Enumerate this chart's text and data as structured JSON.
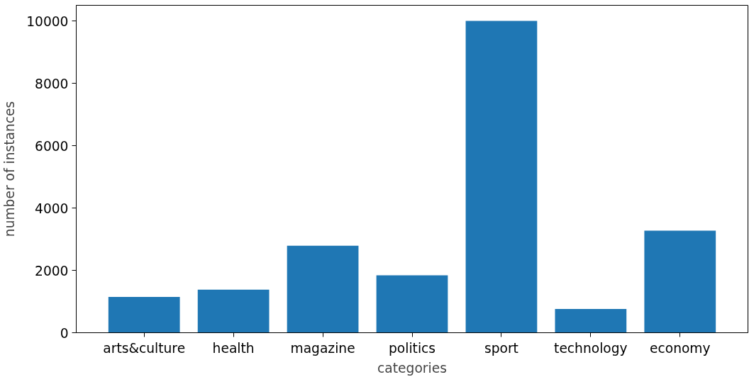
{
  "chart_data": {
    "type": "bar",
    "xlabel": "categories",
    "ylabel": "number of instances",
    "categories": [
      "arts&culture",
      "health",
      "magazine",
      "politics",
      "sport",
      "technology",
      "economy"
    ],
    "values": [
      1150,
      1380,
      2790,
      1840,
      10000,
      760,
      3270
    ],
    "color": "#1f77b4",
    "ylim": [
      0,
      10500
    ],
    "yticks": [
      0,
      2000,
      4000,
      6000,
      8000,
      10000
    ],
    "grid": false
  }
}
